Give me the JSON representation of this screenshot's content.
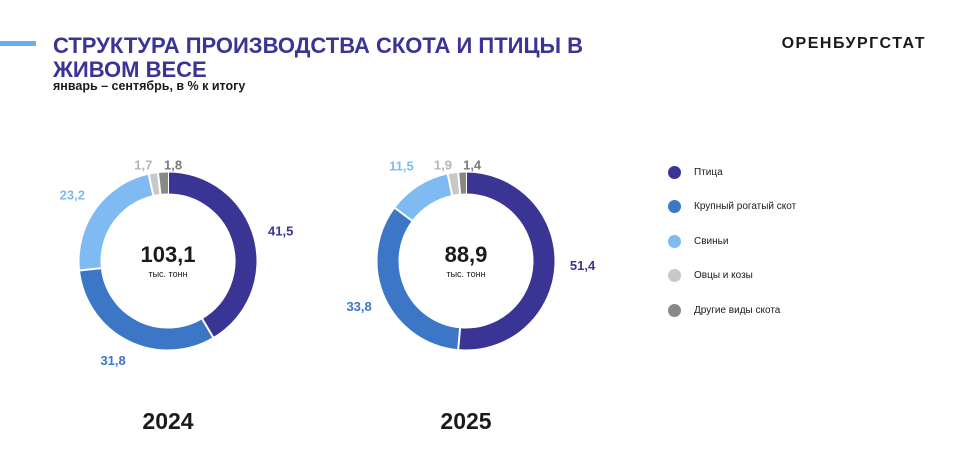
{
  "header": {
    "title": "СТРУКТУРА ПРОИЗВОДСТВА СКОТА И ПТИЦЫ В ЖИВОМ ВЕСЕ",
    "subtitle": "январь – сентябрь, в % к итогу",
    "brand": "ОРЕНБУРГСТАТ"
  },
  "colors": {
    "accent": "#3a3495",
    "accent_bar": "#6aaef0"
  },
  "chart_data": {
    "type": "donut",
    "categories": [
      "Птица",
      "Крупный рогатый скот",
      "Свиньи",
      "Овцы и козы",
      "Другие виды скота"
    ],
    "category_colors": [
      "#3a3495",
      "#3b77c6",
      "#7fbaf2",
      "#c8c8c8",
      "#888888"
    ],
    "label_colors": [
      "#3a3495",
      "#3b77c6",
      "#7fbaf2",
      "#b5b5b5",
      "#7a7a7a"
    ],
    "legend_position": "right",
    "charts": [
      {
        "year": "2024",
        "total": "103,1",
        "unit": "тыс. тонн",
        "values": [
          41.5,
          31.8,
          23.2,
          1.7,
          1.8
        ],
        "value_labels": [
          "41,5",
          "31,8",
          "23,2",
          "1,7",
          "1,8"
        ]
      },
      {
        "year": "2025",
        "total": "88,9",
        "unit": "тыс. тонн",
        "values": [
          51.4,
          33.8,
          11.5,
          1.9,
          1.4
        ],
        "value_labels": [
          "51,4",
          "33,8",
          "11,5",
          "1,9",
          "1,4"
        ]
      }
    ]
  }
}
